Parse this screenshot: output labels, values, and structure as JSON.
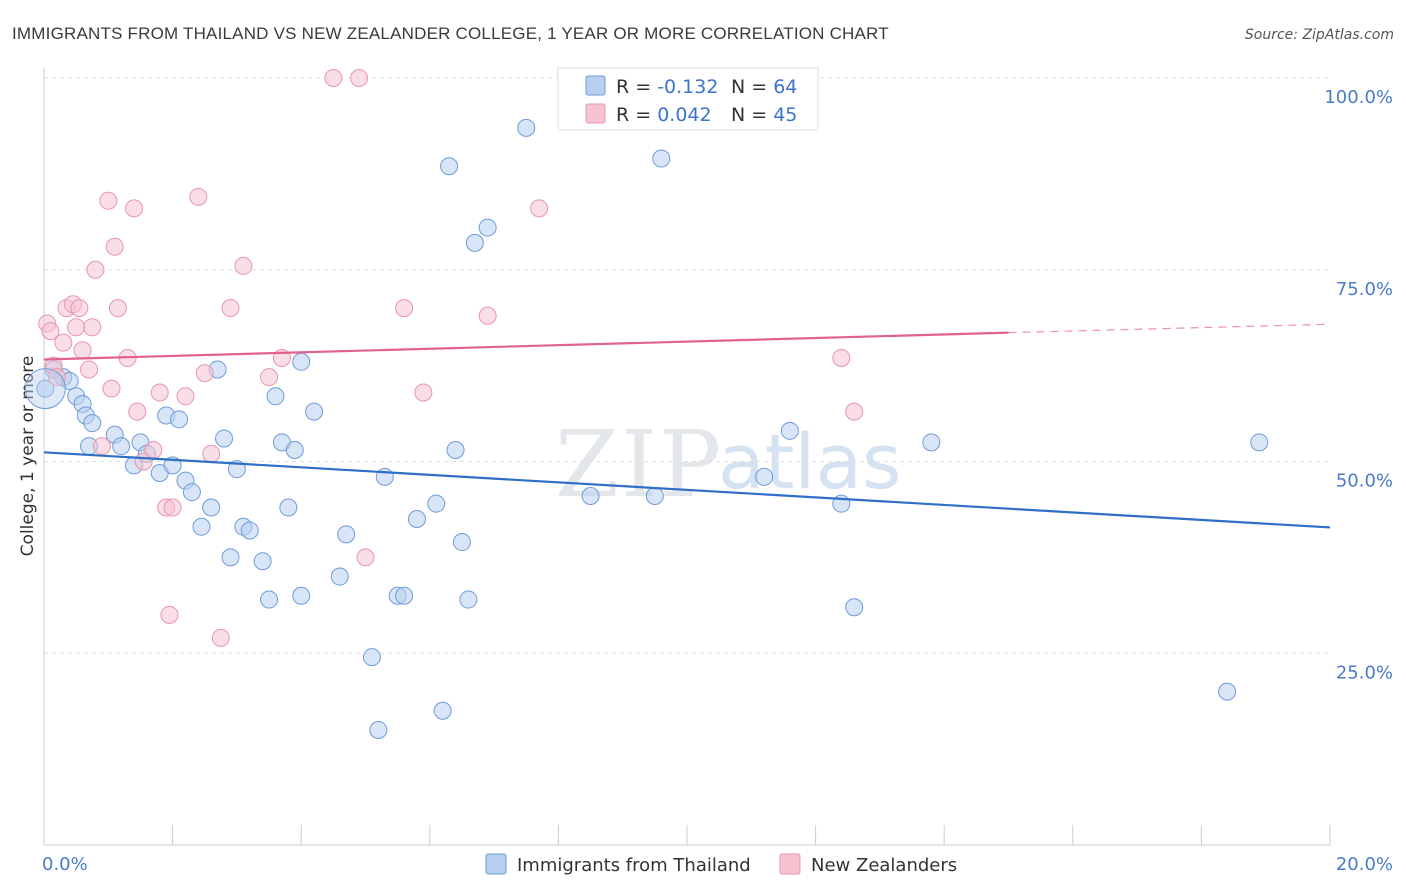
{
  "title": "IMMIGRANTS FROM THAILAND VS NEW ZEALANDER COLLEGE, 1 YEAR OR MORE CORRELATION CHART",
  "source": "Source: ZipAtlas.com",
  "watermark": {
    "zip": "ZIP",
    "atlas": "atlas"
  },
  "colors": {
    "blue_fill": "#b8cff0",
    "blue_stroke": "#6f9bd8",
    "blue_line": "#2f6fc7",
    "pink_fill": "#f6c3d1",
    "pink_stroke": "#e896ad",
    "pink_line": "#e0628d",
    "grid": "#dde1e6",
    "tick_text": "#4a7cc7"
  },
  "legend": {
    "rows": [
      {
        "r_label": "R = ",
        "r_value": "-0.132",
        "n_label": "N = ",
        "n_value": "64"
      },
      {
        "r_label": "R = ",
        "r_value": "0.042",
        "n_label": "N = ",
        "n_value": "45"
      }
    ]
  },
  "bottom_legend": [
    "Immigrants from Thailand",
    "New Zealanders"
  ],
  "chart_data": {
    "type": "scatter",
    "xlabel": "",
    "ylabel": "College, 1 year or more",
    "xlim": [
      0,
      20
    ],
    "ylim": [
      0,
      100
    ],
    "x_tick_labels": [
      {
        "value": 0,
        "label": "0.0%"
      },
      {
        "value": 20,
        "label": "20.0%"
      }
    ],
    "y_tick_labels": [
      {
        "value": 25,
        "label": "25.0%"
      },
      {
        "value": 50,
        "label": "50.0%"
      },
      {
        "value": 75,
        "label": "75.0%"
      },
      {
        "value": 100,
        "label": "100.0%"
      }
    ],
    "grid": true,
    "legend_position": "top-center",
    "series": [
      {
        "name": "Immigrants from Thailand",
        "r": -0.132,
        "n": 64,
        "trend": {
          "x": [
            0,
            20
          ],
          "y": [
            51.2,
            41.4
          ]
        },
        "points": [
          [
            0.02,
            59.5
          ],
          [
            0.15,
            62.0
          ],
          [
            0.3,
            61.0
          ],
          [
            0.4,
            60.5
          ],
          [
            0.5,
            58.5
          ],
          [
            0.6,
            57.5
          ],
          [
            0.65,
            56.0
          ],
          [
            0.7,
            52.0
          ],
          [
            0.75,
            55.0
          ],
          [
            1.1,
            53.5
          ],
          [
            1.2,
            52.0
          ],
          [
            1.4,
            49.5
          ],
          [
            1.5,
            52.5
          ],
          [
            1.6,
            51.0
          ],
          [
            1.8,
            48.5
          ],
          [
            1.9,
            56.0
          ],
          [
            2.0,
            49.5
          ],
          [
            2.2,
            47.5
          ],
          [
            2.3,
            46.0
          ],
          [
            2.45,
            41.5
          ],
          [
            2.6,
            44.0
          ],
          [
            2.7,
            62.0
          ],
          [
            2.8,
            53.0
          ],
          [
            2.9,
            37.5
          ],
          [
            3.0,
            49.0
          ],
          [
            3.1,
            41.5
          ],
          [
            3.2,
            41.0
          ],
          [
            3.4,
            37.0
          ],
          [
            3.5,
            32.0
          ],
          [
            3.6,
            58.5
          ],
          [
            3.7,
            52.5
          ],
          [
            3.8,
            44.0
          ],
          [
            3.9,
            51.5
          ],
          [
            4.0,
            32.5
          ],
          [
            4.2,
            56.5
          ],
          [
            4.6,
            35.0
          ],
          [
            4.7,
            40.5
          ],
          [
            5.1,
            24.5
          ],
          [
            5.2,
            15.0
          ],
          [
            5.3,
            48.0
          ],
          [
            5.5,
            32.5
          ],
          [
            5.6,
            32.5
          ],
          [
            5.8,
            42.5
          ],
          [
            6.1,
            44.5
          ],
          [
            6.2,
            17.5
          ],
          [
            6.3,
            88.5
          ],
          [
            6.4,
            51.5
          ],
          [
            6.5,
            39.5
          ],
          [
            6.6,
            32.0
          ],
          [
            6.7,
            78.5
          ],
          [
            6.9,
            80.5
          ],
          [
            7.5,
            93.5
          ],
          [
            8.5,
            45.5
          ],
          [
            9.5,
            45.5
          ],
          [
            9.6,
            89.5
          ],
          [
            11.2,
            48.0
          ],
          [
            11.6,
            54.0
          ],
          [
            12.4,
            44.5
          ],
          [
            12.6,
            31.0
          ],
          [
            13.8,
            52.5
          ],
          [
            18.9,
            52.5
          ],
          [
            18.4,
            20.0
          ],
          [
            4.0,
            63.0
          ],
          [
            2.1,
            55.5
          ]
        ]
      },
      {
        "name": "New Zealanders",
        "r": 0.042,
        "n": 45,
        "trend": {
          "x": [
            0,
            15
          ],
          "y": [
            63.3,
            66.8
          ]
        },
        "trend_extension": {
          "x": [
            15,
            20
          ],
          "y": [
            66.8,
            67.9
          ]
        },
        "points": [
          [
            0.05,
            68.0
          ],
          [
            0.1,
            67.0
          ],
          [
            0.15,
            62.5
          ],
          [
            0.2,
            61.0
          ],
          [
            0.3,
            65.5
          ],
          [
            0.35,
            70.0
          ],
          [
            0.45,
            70.5
          ],
          [
            0.5,
            67.5
          ],
          [
            0.55,
            70.0
          ],
          [
            0.6,
            64.5
          ],
          [
            0.7,
            62.0
          ],
          [
            0.75,
            67.5
          ],
          [
            0.8,
            75.0
          ],
          [
            0.9,
            52.0
          ],
          [
            1.0,
            84.0
          ],
          [
            1.05,
            59.5
          ],
          [
            1.1,
            78.0
          ],
          [
            1.15,
            70.0
          ],
          [
            1.3,
            63.5
          ],
          [
            1.4,
            83.0
          ],
          [
            1.45,
            56.5
          ],
          [
            1.55,
            50.0
          ],
          [
            1.7,
            51.5
          ],
          [
            1.8,
            59.0
          ],
          [
            1.9,
            44.0
          ],
          [
            1.95,
            30.0
          ],
          [
            2.0,
            44.0
          ],
          [
            2.2,
            58.5
          ],
          [
            2.4,
            84.5
          ],
          [
            2.5,
            61.5
          ],
          [
            2.6,
            51.0
          ],
          [
            2.75,
            27.0
          ],
          [
            2.9,
            70.0
          ],
          [
            3.1,
            75.5
          ],
          [
            3.5,
            61.0
          ],
          [
            3.7,
            63.5
          ],
          [
            4.5,
            100.0
          ],
          [
            4.9,
            100.0
          ],
          [
            5.0,
            37.5
          ],
          [
            5.6,
            70.0
          ],
          [
            5.9,
            59.0
          ],
          [
            6.9,
            69.0
          ],
          [
            7.7,
            83.0
          ],
          [
            12.4,
            63.5
          ],
          [
            12.6,
            56.5
          ]
        ]
      }
    ]
  }
}
